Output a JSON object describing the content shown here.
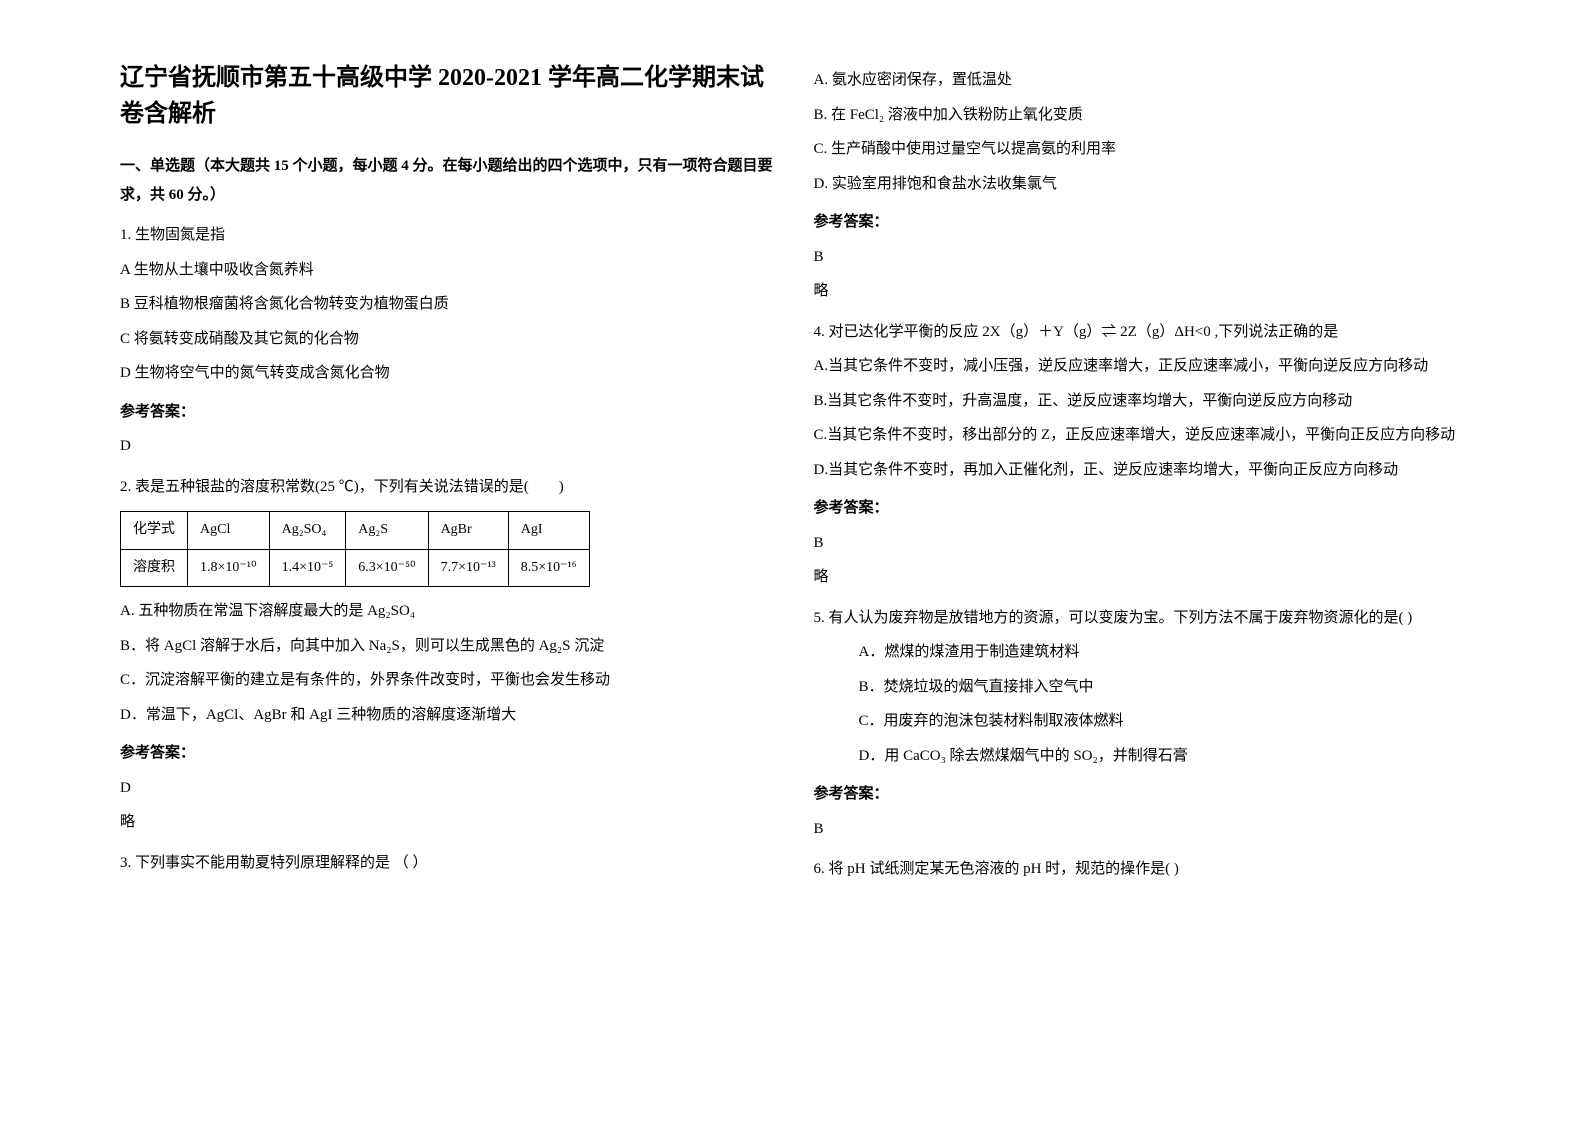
{
  "title": "辽宁省抚顺市第五十高级中学 2020-2021 学年高二化学期末试卷含解析",
  "section1": "一、单选题（本大题共 15 个小题，每小题 4 分。在每小题给出的四个选项中，只有一项符合题目要求，共 60 分。）",
  "q1": {
    "stem": "1. 生物固氮是指",
    "A": "A  生物从土壤中吸收含氮养料",
    "B": "B  豆科植物根瘤菌将含氮化合物转变为植物蛋白质",
    "C": "C  将氨转变成硝酸及其它氮的化合物",
    "D": "D  生物将空气中的氮气转变成含氮化合物",
    "ans_label": "参考答案：",
    "ans": "D"
  },
  "q2": {
    "stem": "2. 表是五种银盐的溶度积常数(25 ℃)，下列有关说法错误的是(　　)",
    "table": {
      "headers": [
        "化学式",
        "AgCl",
        "Ag₂SO₄",
        "Ag₂S",
        "AgBr",
        "AgI"
      ],
      "row_label": "溶度积",
      "values": [
        "1.8×10⁻¹⁰",
        "1.4×10⁻⁵",
        "6.3×10⁻⁵⁰",
        "7.7×10⁻¹³",
        "8.5×10⁻¹⁶"
      ]
    },
    "A": "A. 五种物质在常温下溶解度最大的是 Ag₂SO₄",
    "B": "B．将 AgCl 溶解于水后，向其中加入 Na₂S，则可以生成黑色的 Ag₂S 沉淀",
    "C": "C．沉淀溶解平衡的建立是有条件的，外界条件改变时，平衡也会发生移动",
    "D": "D．常温下，AgCl、AgBr 和 AgI 三种物质的溶解度逐渐增大",
    "ans_label": "参考答案：",
    "ans": "D",
    "note": "略"
  },
  "q3": {
    "stem": "3. 下列事实不能用勒夏特列原理解释的是 （   ）",
    "A": "A. 氨水应密闭保存，置低温处",
    "B": "B. 在 FeCl₂ 溶液中加入铁粉防止氧化变质",
    "C": "C. 生产硝酸中使用过量空气以提高氨的利用率",
    "D": "D. 实验室用排饱和食盐水法收集氯气",
    "ans_label": "参考答案：",
    "ans": "B",
    "note": "略"
  },
  "q4": {
    "stem": "4. 对已达化学平衡的反应  2X（g）＋Y（g）⇌ 2Z（g）ΔH<0 ,下列说法正确的是",
    "A": "A.当其它条件不变时，减小压强，逆反应速率增大，正反应速率减小，平衡向逆反应方向移动",
    "B": "B.当其它条件不变时，升高温度，正、逆反应速率均增大，平衡向逆反应方向移动",
    "C": "C.当其它条件不变时，移出部分的 Z，正反应速率增大，逆反应速率减小，平衡向正反应方向移动",
    "D": "D.当其它条件不变时，再加入正催化剂，正、逆反应速率均增大，平衡向正反应方向移动",
    "ans_label": "参考答案：",
    "ans": "B",
    "note": "略"
  },
  "q5": {
    "stem": "5. 有人认为废弃物是放错地方的资源，可以变废为宝。下列方法不属于废弃物资源化的是(  )",
    "A": "A．燃煤的煤渣用于制造建筑材料",
    "B": "B．焚烧垃圾的烟气直接排入空气中",
    "C": "C．用废弃的泡沫包装材料制取液体燃料",
    "D": "D．用 CaCO₃ 除去燃煤烟气中的 SO₂，并制得石膏",
    "ans_label": "参考答案：",
    "ans": "B"
  },
  "q6": {
    "stem": " 6. 将 pH 试纸测定某无色溶液的 pH 时，规范的操作是(  )"
  }
}
